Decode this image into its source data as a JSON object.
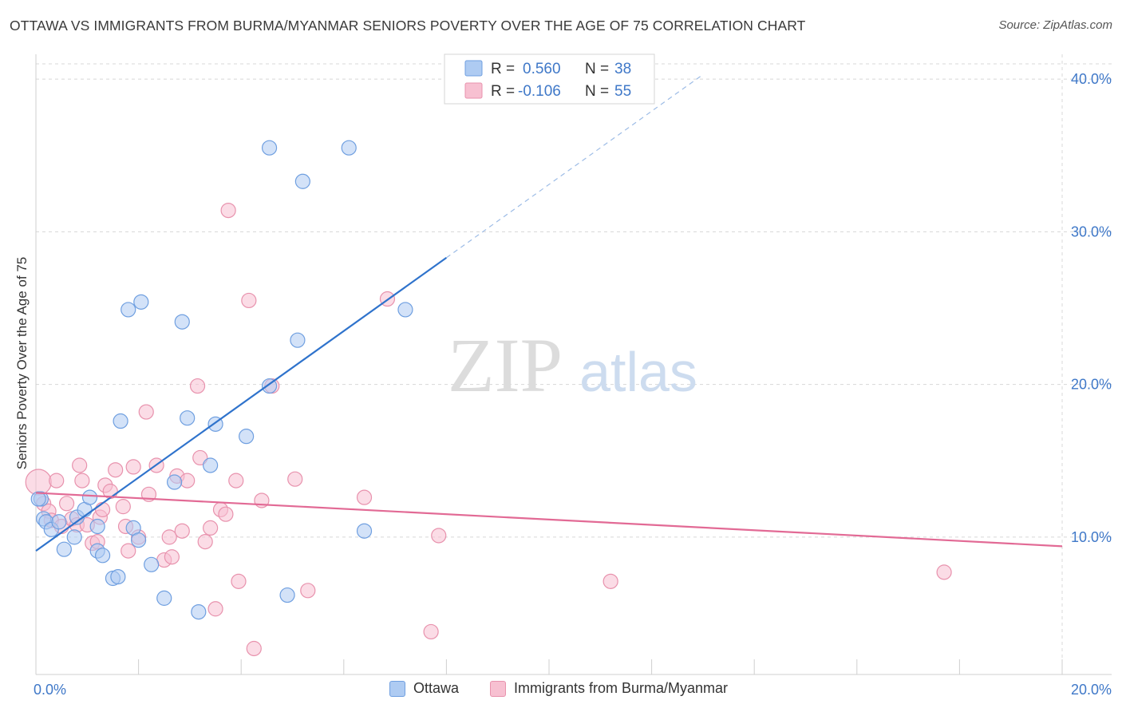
{
  "title": "OTTAWA VS IMMIGRANTS FROM BURMA/MYANMAR SENIORS POVERTY OVER THE AGE OF 75 CORRELATION CHART",
  "source": "Source: ZipAtlas.com",
  "watermark": {
    "zip": "ZIP",
    "atlas": "atlas"
  },
  "colors": {
    "ottawa_fill": "#aecbf2",
    "ottawa_stroke": "#6f9fe0",
    "ottawa_line": "#2f73cc",
    "burma_fill": "#f7c0d1",
    "burma_stroke": "#e892ad",
    "burma_line": "#e26a95",
    "axis_text": "#3f78c8",
    "grid": "#d8d8d8"
  },
  "legend_top": {
    "ottawa": {
      "r_label": "R =",
      "r_value": "0.560",
      "n_label": "N =",
      "n_value": "38"
    },
    "burma": {
      "r_label": "R =",
      "r_value": "-0.106",
      "n_label": "N =",
      "n_value": "55"
    }
  },
  "legend_bottom": {
    "ottawa": "Ottawa",
    "burma": "Immigrants from Burma/Myanmar"
  },
  "chart_data": {
    "type": "scatter",
    "title": "OTTAWA VS IMMIGRANTS FROM BURMA/MYANMAR SENIORS POVERTY OVER THE AGE OF 75 CORRELATION CHART",
    "xlabel": "",
    "ylabel": "Seniors Poverty Over the Age of 75",
    "xlim": [
      0,
      20
    ],
    "ylim": [
      1,
      41
    ],
    "x_tick_labels": [
      "0.0%",
      "20.0%"
    ],
    "y_ticks": [
      10,
      20,
      30,
      40
    ],
    "y_tick_labels": [
      "10.0%",
      "20.0%",
      "30.0%",
      "40.0%"
    ],
    "grid": true,
    "legend_placement": "top-center",
    "series": [
      {
        "name": "Ottawa",
        "r": 0.56,
        "n": 38,
        "trend": {
          "x0": 0.0,
          "y0": 9.1,
          "x1": 8.0,
          "y1": 28.3,
          "dashed_to_x": 13.0
        },
        "points": [
          [
            0.1,
            12.5
          ],
          [
            0.15,
            11.2
          ],
          [
            0.2,
            11.0
          ],
          [
            0.3,
            10.5
          ],
          [
            0.45,
            11.0
          ],
          [
            0.55,
            9.2
          ],
          [
            0.75,
            10.0
          ],
          [
            0.8,
            11.3
          ],
          [
            0.95,
            11.8
          ],
          [
            1.05,
            12.6
          ],
          [
            1.2,
            10.7
          ],
          [
            1.2,
            9.1
          ],
          [
            1.3,
            8.8
          ],
          [
            1.5,
            7.3
          ],
          [
            1.6,
            7.4
          ],
          [
            1.65,
            17.6
          ],
          [
            1.8,
            24.9
          ],
          [
            1.9,
            10.6
          ],
          [
            2.0,
            9.8
          ],
          [
            2.05,
            25.4
          ],
          [
            2.25,
            8.2
          ],
          [
            2.5,
            6.0
          ],
          [
            2.7,
            13.6
          ],
          [
            2.85,
            24.1
          ],
          [
            2.95,
            17.8
          ],
          [
            3.17,
            5.1
          ],
          [
            3.4,
            14.7
          ],
          [
            3.5,
            17.4
          ],
          [
            4.1,
            16.6
          ],
          [
            4.55,
            35.5
          ],
          [
            4.55,
            19.9
          ],
          [
            4.9,
            6.2
          ],
          [
            5.1,
            22.9
          ],
          [
            5.2,
            33.3
          ],
          [
            6.1,
            35.5
          ],
          [
            6.4,
            10.4
          ],
          [
            7.2,
            24.9
          ],
          [
            0.05,
            12.5
          ]
        ]
      },
      {
        "name": "Immigrants from Burma/Myanmar",
        "r": -0.106,
        "n": 55,
        "trend": {
          "x0": 0.0,
          "y0": 12.9,
          "x1": 20.0,
          "y1": 9.4
        },
        "points": [
          [
            0.05,
            13.6
          ],
          [
            0.15,
            12.2
          ],
          [
            0.25,
            11.7
          ],
          [
            0.3,
            11.1
          ],
          [
            0.4,
            13.7
          ],
          [
            0.5,
            10.7
          ],
          [
            0.6,
            12.2
          ],
          [
            0.7,
            11.2
          ],
          [
            0.8,
            10.8
          ],
          [
            0.85,
            14.7
          ],
          [
            0.9,
            13.7
          ],
          [
            1.0,
            10.8
          ],
          [
            1.1,
            9.6
          ],
          [
            1.2,
            9.7
          ],
          [
            1.25,
            11.3
          ],
          [
            1.3,
            11.8
          ],
          [
            1.35,
            13.4
          ],
          [
            1.45,
            13.0
          ],
          [
            1.55,
            14.4
          ],
          [
            1.7,
            12.0
          ],
          [
            1.75,
            10.7
          ],
          [
            1.8,
            9.1
          ],
          [
            1.9,
            14.6
          ],
          [
            2.0,
            10.0
          ],
          [
            2.15,
            18.2
          ],
          [
            2.2,
            12.8
          ],
          [
            2.35,
            14.7
          ],
          [
            2.5,
            8.5
          ],
          [
            2.6,
            10.0
          ],
          [
            2.65,
            8.7
          ],
          [
            2.75,
            14.0
          ],
          [
            2.85,
            10.4
          ],
          [
            2.95,
            13.7
          ],
          [
            3.15,
            19.9
          ],
          [
            3.2,
            15.2
          ],
          [
            3.3,
            9.7
          ],
          [
            3.4,
            10.6
          ],
          [
            3.5,
            5.3
          ],
          [
            3.6,
            11.8
          ],
          [
            3.7,
            11.5
          ],
          [
            3.75,
            31.4
          ],
          [
            3.9,
            13.7
          ],
          [
            3.95,
            7.1
          ],
          [
            4.15,
            25.5
          ],
          [
            4.25,
            2.7
          ],
          [
            4.4,
            12.4
          ],
          [
            4.6,
            19.9
          ],
          [
            5.05,
            13.8
          ],
          [
            5.3,
            6.5
          ],
          [
            6.4,
            12.6
          ],
          [
            6.85,
            25.6
          ],
          [
            7.7,
            3.8
          ],
          [
            7.85,
            10.1
          ],
          [
            11.2,
            7.1
          ],
          [
            17.7,
            7.7
          ]
        ]
      }
    ]
  }
}
